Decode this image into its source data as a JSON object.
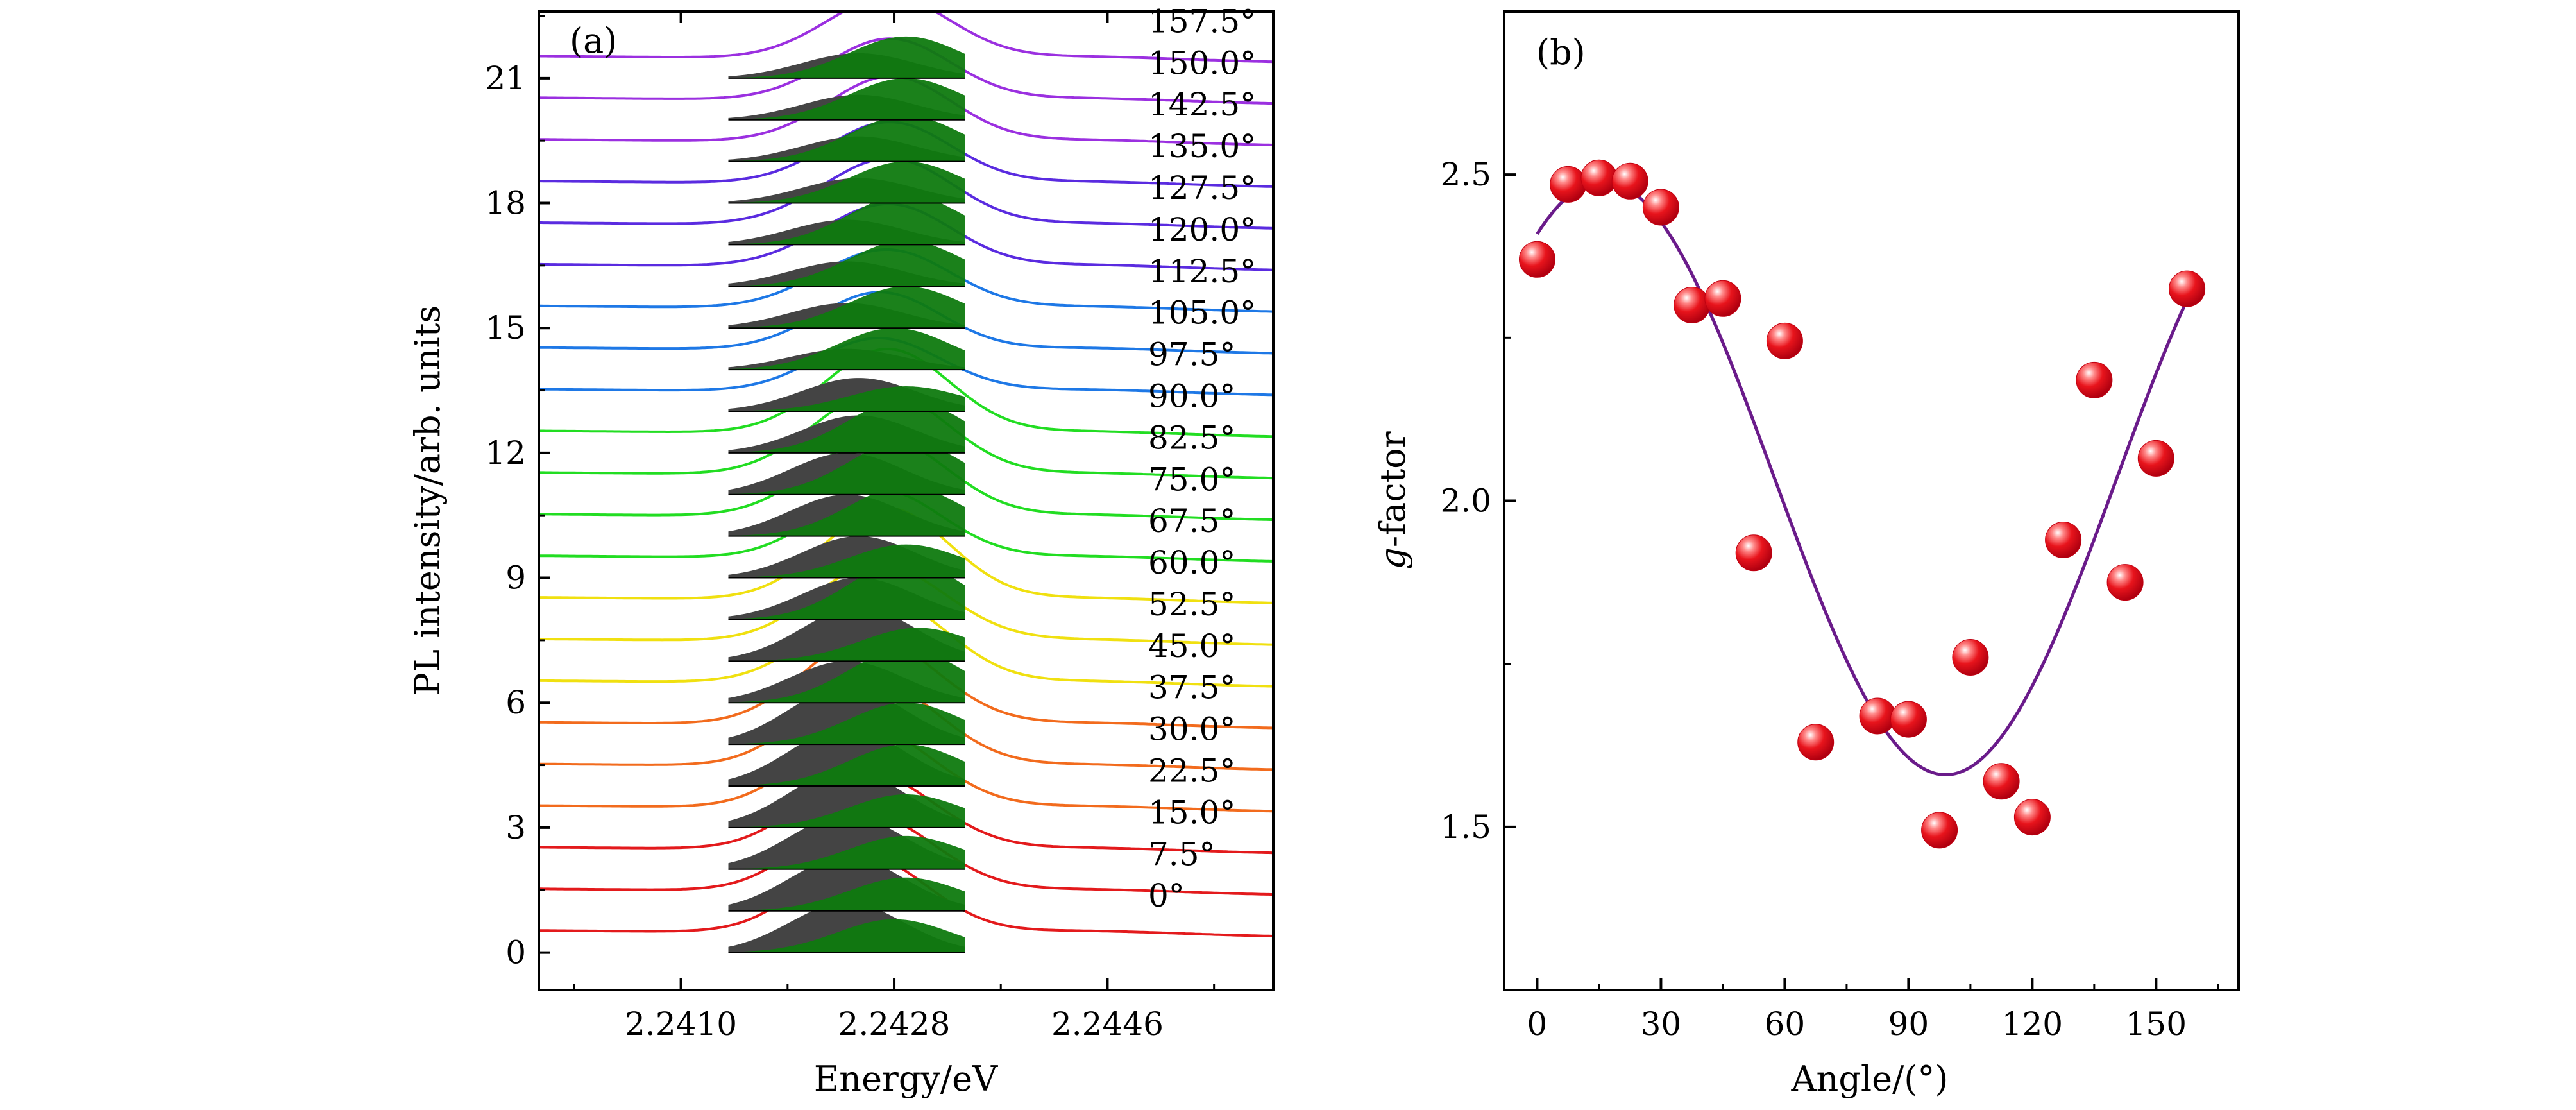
{
  "panels": [
    {
      "panel_label": "(a)",
      "xlabel": "Energy/eV",
      "ylabel": "PL intensity/arb. units",
      "x_ticks": [
        "2.2410",
        "2.2428",
        "2.2446"
      ],
      "y_ticks": [
        "0",
        "3",
        "6",
        "9",
        "12",
        "15",
        "18",
        "21"
      ]
    },
    {
      "panel_label": "(b)",
      "xlabel_prefix": "",
      "xlabel": "Angle/(°)",
      "ylabel_italic": "g",
      "ylabel_rest": "-factor",
      "x_ticks": [
        "0",
        "30",
        "60",
        "90",
        "120",
        "150"
      ],
      "y_ticks": [
        "1.5",
        "2.0",
        "2.5"
      ]
    }
  ],
  "chart_data": [
    {
      "type": "line",
      "panel": "(a)",
      "xlabel": "Energy/eV",
      "ylabel": "PL intensity/arb. units",
      "xlim": [
        2.2398,
        2.246
      ],
      "ylim": [
        -0.9,
        22.6
      ],
      "x_ticks": [
        2.241,
        2.2428,
        2.2446
      ],
      "y_ticks": [
        0,
        3,
        6,
        9,
        12,
        15,
        18,
        21
      ],
      "grid": false,
      "peak_fill_colors": {
        "low_energy_peak": "#444444",
        "high_energy_peak": "#0f7a0f"
      },
      "series": [
        {
          "name": "0°",
          "offset": 0.0,
          "color": "#e31a1c",
          "peak1_center": 2.2424,
          "peak1_height": 1.2,
          "peak2_center": 2.2428,
          "peak2_height": 0.8
        },
        {
          "name": "7.5°",
          "offset": 1.0,
          "color": "#e31a1c",
          "peak1_center": 2.2424,
          "peak1_height": 1.3,
          "peak2_center": 2.2429,
          "peak2_height": 0.8
        },
        {
          "name": "15.0°",
          "offset": 2.0,
          "color": "#e31a1c",
          "peak1_center": 2.2424,
          "peak1_height": 1.3,
          "peak2_center": 2.2429,
          "peak2_height": 0.8
        },
        {
          "name": "22.5°",
          "offset": 3.0,
          "color": "#f26b1d",
          "peak1_center": 2.2424,
          "peak1_height": 1.4,
          "peak2_center": 2.2429,
          "peak2_height": 0.8
        },
        {
          "name": "30.0°",
          "offset": 4.0,
          "color": "#f26b1d",
          "peak1_center": 2.2424,
          "peak1_height": 1.4,
          "peak2_center": 2.2429,
          "peak2_height": 1.0
        },
        {
          "name": "37.5°",
          "offset": 5.0,
          "color": "#f26b1d",
          "peak1_center": 2.2424,
          "peak1_height": 1.4,
          "peak2_center": 2.2429,
          "peak2_height": 1.0
        },
        {
          "name": "45.0°",
          "offset": 6.0,
          "color": "#f0e010",
          "peak1_center": 2.2424,
          "peak1_height": 1.0,
          "peak2_center": 2.2429,
          "peak2_height": 1.3
        },
        {
          "name": "52.5°",
          "offset": 7.0,
          "color": "#f0e010",
          "peak1_center": 2.2425,
          "peak1_height": 1.3,
          "peak2_center": 2.243,
          "peak2_height": 0.8
        },
        {
          "name": "60.0°",
          "offset": 8.0,
          "color": "#f0e010",
          "peak1_center": 2.2425,
          "peak1_height": 1.0,
          "peak2_center": 2.2429,
          "peak2_height": 1.4
        },
        {
          "name": "67.5°",
          "offset": 9.0,
          "color": "#22dd22",
          "peak1_center": 2.2425,
          "peak1_height": 1.0,
          "peak2_center": 2.2429,
          "peak2_height": 0.8
        },
        {
          "name": "75.0°",
          "offset": 10.0,
          "color": "#22dd22",
          "peak1_center": 2.2424,
          "peak1_height": 1.0,
          "peak2_center": 2.2429,
          "peak2_height": 1.2
        },
        {
          "name": "82.5°",
          "offset": 11.0,
          "color": "#22dd22",
          "peak1_center": 2.2424,
          "peak1_height": 1.0,
          "peak2_center": 2.2429,
          "peak2_height": 1.3
        },
        {
          "name": "90.0°",
          "offset": 12.0,
          "color": "#22dd22",
          "peak1_center": 2.2425,
          "peak1_height": 0.9,
          "peak2_center": 2.2429,
          "peak2_height": 1.3
        },
        {
          "name": "97.5°",
          "offset": 13.0,
          "color": "#1e78e6",
          "peak1_center": 2.2425,
          "peak1_height": 0.8,
          "peak2_center": 2.2429,
          "peak2_height": 0.6
        },
        {
          "name": "105.0°",
          "offset": 14.0,
          "color": "#1e78e6",
          "peak1_center": 2.2424,
          "peak1_height": 0.5,
          "peak2_center": 2.2428,
          "peak2_height": 1.0
        },
        {
          "name": "112.5°",
          "offset": 15.0,
          "color": "#1e78e6",
          "peak1_center": 2.2424,
          "peak1_height": 0.6,
          "peak2_center": 2.2429,
          "peak2_height": 1.0
        },
        {
          "name": "120.0°",
          "offset": 16.0,
          "color": "#5a2be0",
          "peak1_center": 2.2424,
          "peak1_height": 0.6,
          "peak2_center": 2.2429,
          "peak2_height": 1.1
        },
        {
          "name": "127.5°",
          "offset": 17.0,
          "color": "#5a2be0",
          "peak1_center": 2.2424,
          "peak1_height": 0.6,
          "peak2_center": 2.2429,
          "peak2_height": 1.2
        },
        {
          "name": "135.0°",
          "offset": 18.0,
          "color": "#5a2be0",
          "peak1_center": 2.2425,
          "peak1_height": 0.6,
          "peak2_center": 2.2429,
          "peak2_height": 1.0
        },
        {
          "name": "142.5°",
          "offset": 19.0,
          "color": "#9b30e0",
          "peak1_center": 2.2425,
          "peak1_height": 0.6,
          "peak2_center": 2.2429,
          "peak2_height": 1.1
        },
        {
          "name": "150.0°",
          "offset": 20.0,
          "color": "#9b30e0",
          "peak1_center": 2.2425,
          "peak1_height": 0.6,
          "peak2_center": 2.2429,
          "peak2_height": 1.0
        },
        {
          "name": "157.5°",
          "offset": 21.0,
          "color": "#9b30e0",
          "peak1_center": 2.2425,
          "peak1_height": 0.6,
          "peak2_center": 2.2429,
          "peak2_height": 1.0
        }
      ],
      "angle_label_colors": {
        "0°": "#e31a1c",
        "7.5°": "#e31a1c",
        "15.0°": "#e31a1c",
        "22.5°": "#e6b325",
        "30.0°": "#e6b325",
        "37.5°": "#e6b325",
        "45.0°": "#e6d21a",
        "52.5°": "#e6d21a",
        "60.0°": "#e6d21a",
        "67.5°": "#1db81d",
        "75.0°": "#1db81d",
        "82.5°": "#1db81d",
        "90.0°": "#1db81d",
        "97.5°": "#1fc6c6",
        "105.0°": "#1fc6c6",
        "112.5°": "#1fc6c6",
        "120.0°": "#6a2fd8",
        "127.5°": "#6a2fd8",
        "135.0°": "#6a2fd8",
        "142.5°": "#a33ad8",
        "150.0°": "#a33ad8",
        "157.5°": "#a33ad8"
      }
    },
    {
      "type": "scatter",
      "panel": "(b)",
      "xlabel": "Angle/(°)",
      "ylabel": "g-factor",
      "xlim": [
        -8,
        170
      ],
      "ylim": [
        1.25,
        2.75
      ],
      "x_ticks": [
        0,
        30,
        60,
        90,
        120,
        150
      ],
      "y_ticks": [
        1.5,
        2.0,
        2.5
      ],
      "grid": false,
      "marker_color": "#e8141c",
      "fit_color": "#6a1b8a",
      "points": [
        {
          "x": 0,
          "y": 2.37
        },
        {
          "x": 7.5,
          "y": 2.485
        },
        {
          "x": 15,
          "y": 2.495
        },
        {
          "x": 22.5,
          "y": 2.49
        },
        {
          "x": 30,
          "y": 2.45
        },
        {
          "x": 37.5,
          "y": 2.3
        },
        {
          "x": 45,
          "y": 2.31
        },
        {
          "x": 52.5,
          "y": 1.92
        },
        {
          "x": 60,
          "y": 2.245
        },
        {
          "x": 67.5,
          "y": 1.63
        },
        {
          "x": 82.5,
          "y": 1.67
        },
        {
          "x": 90,
          "y": 1.665
        },
        {
          "x": 97.5,
          "y": 1.495
        },
        {
          "x": 105,
          "y": 1.76
        },
        {
          "x": 112.5,
          "y": 1.57
        },
        {
          "x": 120,
          "y": 1.515
        },
        {
          "x": 127.5,
          "y": 1.94
        },
        {
          "x": 135,
          "y": 2.185
        },
        {
          "x": 142.5,
          "y": 1.875
        },
        {
          "x": 150,
          "y": 2.065
        },
        {
          "x": 157.5,
          "y": 2.325
        }
      ],
      "fit": {
        "form": "cosine",
        "mean": 2.035,
        "amplitude": 0.455,
        "phase_deg": 16,
        "period_deg": 166
      }
    }
  ]
}
